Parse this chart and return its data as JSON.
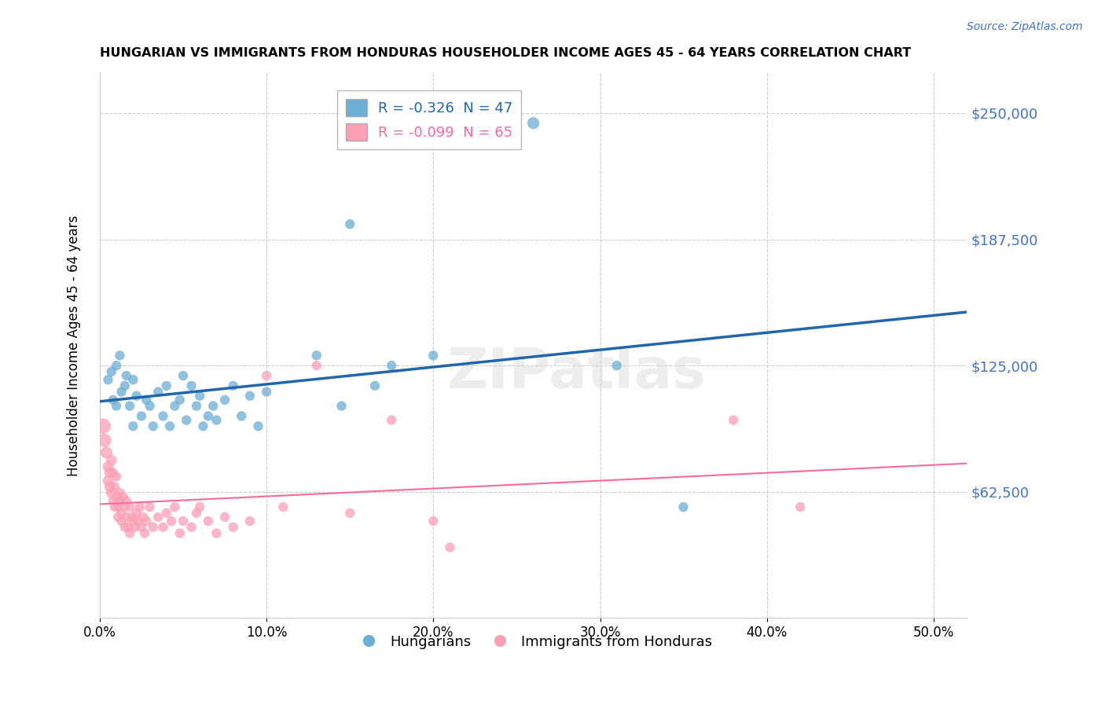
{
  "title": "HUNGARIAN VS IMMIGRANTS FROM HONDURAS HOUSEHOLDER INCOME AGES 45 - 64 YEARS CORRELATION CHART",
  "source": "Source: ZipAtlas.com",
  "ylabel": "Householder Income Ages 45 - 64 years",
  "xlabel_ticks": [
    "0.0%",
    "10.0%",
    "20.0%",
    "30.0%",
    "40.0%",
    "50.0%"
  ],
  "xlabel_vals": [
    0.0,
    0.1,
    0.2,
    0.3,
    0.4,
    0.5
  ],
  "ytick_labels": [
    "$62,500",
    "$125,000",
    "$187,500",
    "$250,000"
  ],
  "ytick_vals": [
    62500,
    125000,
    187500,
    250000
  ],
  "ylim": [
    0,
    270000
  ],
  "xlim": [
    0.0,
    0.52
  ],
  "legend_blue_label": "R = -0.326  N = 47",
  "legend_pink_label": "R = -0.099  N = 65",
  "legend_bottom_blue": "Hungarians",
  "legend_bottom_pink": "Immigrants from Honduras",
  "blue_color": "#6baed6",
  "pink_color": "#fa9fb5",
  "blue_line_color": "#2166ac",
  "pink_line_color": "#f768a1",
  "watermark": "ZIPatlas",
  "blue_R": -0.326,
  "blue_N": 47,
  "pink_R": -0.099,
  "pink_N": 65,
  "blue_points": [
    [
      0.005,
      118000
    ],
    [
      0.007,
      122000
    ],
    [
      0.008,
      108000
    ],
    [
      0.01,
      125000
    ],
    [
      0.01,
      105000
    ],
    [
      0.012,
      130000
    ],
    [
      0.013,
      112000
    ],
    [
      0.015,
      115000
    ],
    [
      0.016,
      120000
    ],
    [
      0.018,
      105000
    ],
    [
      0.02,
      95000
    ],
    [
      0.02,
      118000
    ],
    [
      0.022,
      110000
    ],
    [
      0.025,
      100000
    ],
    [
      0.028,
      108000
    ],
    [
      0.03,
      105000
    ],
    [
      0.032,
      95000
    ],
    [
      0.035,
      112000
    ],
    [
      0.038,
      100000
    ],
    [
      0.04,
      115000
    ],
    [
      0.042,
      95000
    ],
    [
      0.045,
      105000
    ],
    [
      0.048,
      108000
    ],
    [
      0.05,
      120000
    ],
    [
      0.052,
      98000
    ],
    [
      0.055,
      115000
    ],
    [
      0.058,
      105000
    ],
    [
      0.06,
      110000
    ],
    [
      0.062,
      95000
    ],
    [
      0.065,
      100000
    ],
    [
      0.068,
      105000
    ],
    [
      0.07,
      98000
    ],
    [
      0.075,
      108000
    ],
    [
      0.08,
      115000
    ],
    [
      0.085,
      100000
    ],
    [
      0.09,
      110000
    ],
    [
      0.095,
      95000
    ],
    [
      0.1,
      112000
    ],
    [
      0.13,
      130000
    ],
    [
      0.145,
      105000
    ],
    [
      0.15,
      195000
    ],
    [
      0.165,
      115000
    ],
    [
      0.175,
      125000
    ],
    [
      0.2,
      130000
    ],
    [
      0.26,
      245000
    ],
    [
      0.31,
      125000
    ],
    [
      0.35,
      55000
    ]
  ],
  "pink_points": [
    [
      0.002,
      95000
    ],
    [
      0.003,
      88000
    ],
    [
      0.004,
      82000
    ],
    [
      0.005,
      75000
    ],
    [
      0.005,
      68000
    ],
    [
      0.006,
      72000
    ],
    [
      0.006,
      65000
    ],
    [
      0.007,
      78000
    ],
    [
      0.007,
      62000
    ],
    [
      0.008,
      58000
    ],
    [
      0.008,
      72000
    ],
    [
      0.009,
      65000
    ],
    [
      0.009,
      55000
    ],
    [
      0.01,
      70000
    ],
    [
      0.01,
      60000
    ],
    [
      0.011,
      55000
    ],
    [
      0.011,
      50000
    ],
    [
      0.012,
      62000
    ],
    [
      0.012,
      58000
    ],
    [
      0.013,
      52000
    ],
    [
      0.013,
      48000
    ],
    [
      0.014,
      60000
    ],
    [
      0.015,
      55000
    ],
    [
      0.015,
      45000
    ],
    [
      0.016,
      58000
    ],
    [
      0.016,
      50000
    ],
    [
      0.017,
      45000
    ],
    [
      0.018,
      55000
    ],
    [
      0.018,
      42000
    ],
    [
      0.019,
      50000
    ],
    [
      0.02,
      48000
    ],
    [
      0.021,
      45000
    ],
    [
      0.022,
      52000
    ],
    [
      0.023,
      48000
    ],
    [
      0.024,
      55000
    ],
    [
      0.025,
      45000
    ],
    [
      0.026,
      50000
    ],
    [
      0.027,
      42000
    ],
    [
      0.028,
      48000
    ],
    [
      0.03,
      55000
    ],
    [
      0.032,
      45000
    ],
    [
      0.035,
      50000
    ],
    [
      0.038,
      45000
    ],
    [
      0.04,
      52000
    ],
    [
      0.043,
      48000
    ],
    [
      0.045,
      55000
    ],
    [
      0.048,
      42000
    ],
    [
      0.05,
      48000
    ],
    [
      0.055,
      45000
    ],
    [
      0.058,
      52000
    ],
    [
      0.06,
      55000
    ],
    [
      0.065,
      48000
    ],
    [
      0.07,
      42000
    ],
    [
      0.075,
      50000
    ],
    [
      0.08,
      45000
    ],
    [
      0.09,
      48000
    ],
    [
      0.1,
      120000
    ],
    [
      0.11,
      55000
    ],
    [
      0.13,
      125000
    ],
    [
      0.15,
      52000
    ],
    [
      0.175,
      98000
    ],
    [
      0.2,
      48000
    ],
    [
      0.21,
      35000
    ],
    [
      0.38,
      98000
    ],
    [
      0.42,
      55000
    ]
  ],
  "blue_point_sizes": [
    80,
    80,
    80,
    80,
    80,
    80,
    80,
    80,
    80,
    80,
    80,
    80,
    80,
    80,
    80,
    80,
    80,
    80,
    80,
    80,
    80,
    80,
    80,
    80,
    80,
    80,
    80,
    80,
    80,
    80,
    80,
    80,
    80,
    80,
    80,
    80,
    80,
    80,
    80,
    80,
    80,
    80,
    80,
    80,
    120,
    80,
    80
  ],
  "pink_point_sizes": [
    200,
    150,
    120,
    100,
    100,
    100,
    100,
    100,
    100,
    80,
    80,
    80,
    80,
    80,
    80,
    80,
    80,
    80,
    80,
    80,
    80,
    80,
    80,
    80,
    80,
    80,
    80,
    80,
    80,
    80,
    80,
    80,
    80,
    80,
    80,
    80,
    80,
    80,
    80,
    80,
    80,
    80,
    80,
    80,
    80,
    80,
    80,
    80,
    80,
    80,
    80,
    80,
    80,
    80,
    80,
    80,
    80,
    80,
    80,
    80,
    80,
    80,
    80,
    80,
    80
  ]
}
